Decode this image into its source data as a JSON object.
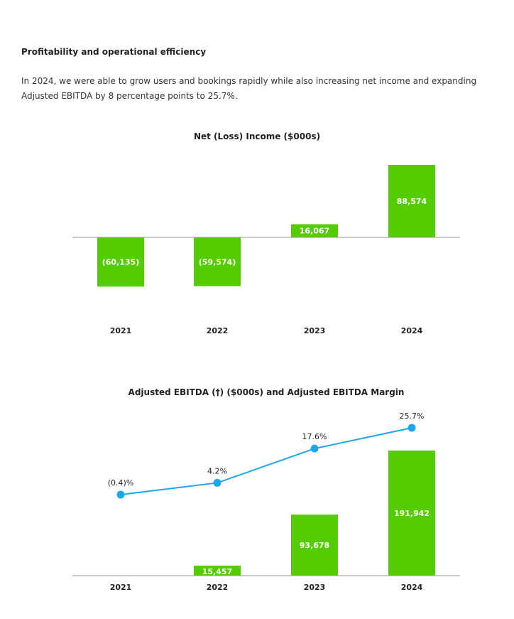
{
  "section": {
    "heading": "Profitability and operational efficiency",
    "intro": "In 2024, we were able to grow users and bookings rapidly while also increasing net income and expanding Adjusted EBITDA by 8 percentage points to 25.7%."
  },
  "colors": {
    "bar": "#55cc00",
    "line": "#1aa7ec",
    "axis": "#9a9a9a",
    "text": "#222222"
  },
  "chart_data": [
    {
      "type": "bar",
      "title": "Net (Loss) Income ($000s)",
      "categories": [
        "2021",
        "2022",
        "2023",
        "2024"
      ],
      "values": [
        -60135,
        -59574,
        16067,
        88574
      ],
      "labels": [
        "(60,135)",
        "(59,574)",
        "16,067",
        "88,574"
      ],
      "xlabel": "",
      "ylabel": "",
      "grid": false
    },
    {
      "type": "bar+line",
      "title": "Adjusted EBITDA (†) ($000s) and Adjusted EBITDA Margin",
      "categories": [
        "2021",
        "2022",
        "2023",
        "2024"
      ],
      "series": [
        {
          "name": "Adjusted EBITDA ($000s)",
          "type": "bar",
          "values": [
            0,
            15457,
            93678,
            191942
          ],
          "labels": [
            "",
            "15,457",
            "93,678",
            "191,942"
          ]
        },
        {
          "name": "Adjusted EBITDA Margin (%)",
          "type": "line",
          "values": [
            -0.4,
            4.2,
            17.6,
            25.7
          ],
          "labels": [
            "(0.4)%",
            "4.2%",
            "17.6%",
            "25.7%"
          ]
        }
      ],
      "xlabel": "",
      "ylabel": "",
      "grid": false
    }
  ]
}
